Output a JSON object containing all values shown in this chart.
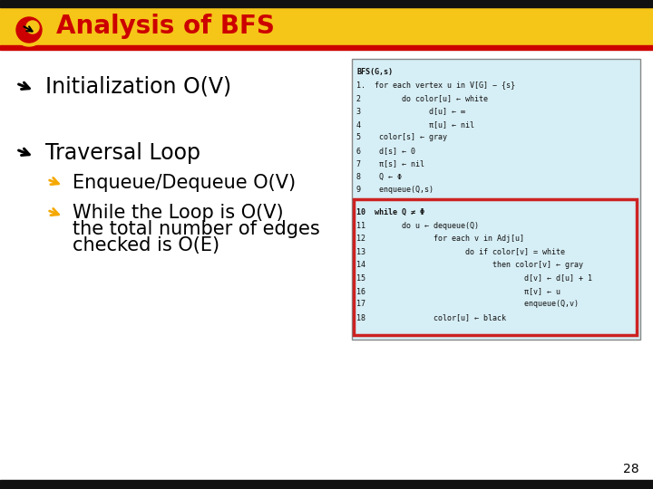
{
  "title": "Analysis of BFS",
  "title_color": "#cc0000",
  "title_fontsize": 20,
  "bg_color": "#ffffff",
  "header_bar_color": "#f5c518",
  "header_red_line_color": "#cc0000",
  "bullet1": "Initialization O(V)",
  "bullet2": "Traversal Loop",
  "sub_bullet1": "Enqueue/Dequeue O(V)",
  "sub_bullet2_line1": "While the Loop is O(V)",
  "sub_bullet2_line2": "the total number of edges",
  "sub_bullet2_line3": "checked is O(E)",
  "bullet_fontsize": 17,
  "sub_bullet_fontsize": 15,
  "page_num": "28",
  "code_bg": "#d6eef5",
  "code_border": "#aaaaaa",
  "highlight_border": "#cc2222",
  "code_lines_top": [
    "BFS(G,s)",
    "1.  for each vertex u in V[G] − {s}",
    "2         do color[u] ← white",
    "3               d[u] ← ∞",
    "4               π[u] ← nil",
    "5    color[s] ← gray",
    "6    d[s] ← 0",
    "7    π[s] ← nil",
    "8    Q ← Φ",
    "9    enqueue(Q,s)"
  ],
  "code_lines_bottom": [
    "10  while Q ≠ Φ",
    "11        do u ← dequeue(Q)",
    "12               for each v in Adj[u]",
    "13                      do if color[v] = white",
    "14                            then color[v] ← gray",
    "15                                   d[v] ← d[u] + 1",
    "16                                   π[v] ← u",
    "17                                   enqueue(Q,v)",
    "18               color[u] ← black"
  ]
}
